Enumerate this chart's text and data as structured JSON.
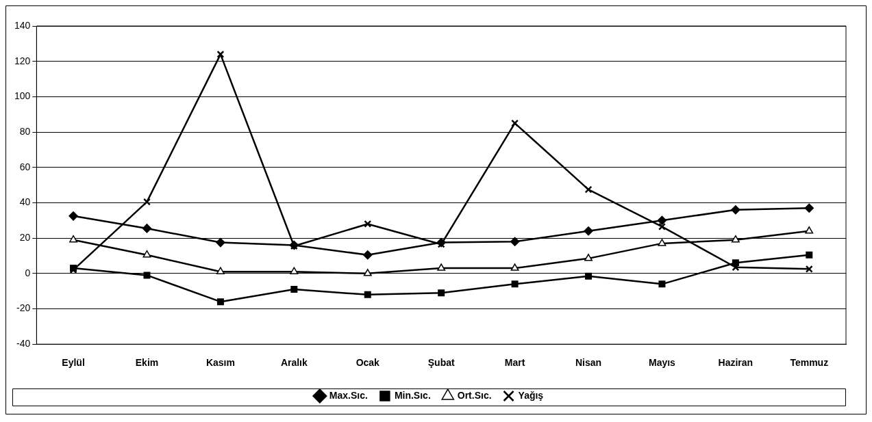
{
  "chart_data": {
    "type": "line",
    "categories": [
      "Eylül",
      "Ekim",
      "Kasım",
      "Aralık",
      "Ocak",
      "Şubat",
      "Mart",
      "Nisan",
      "Mayıs",
      "Haziran",
      "Temmuz"
    ],
    "series": [
      {
        "name": "Max.Sıc.",
        "color": "#000000",
        "marker": "diamond",
        "values": [
          32.5,
          25.5,
          17.5,
          16,
          10.5,
          17.5,
          18,
          24,
          30,
          36,
          37
        ]
      },
      {
        "name": "Min.Sıc.",
        "color": "#000000",
        "marker": "square",
        "values": [
          3,
          -1,
          -16,
          -9,
          -12,
          -11,
          -6,
          -1.5,
          -6,
          6,
          10.5
        ]
      },
      {
        "name": "Ort.Sıc.",
        "color": "#000000",
        "marker": "triangle",
        "values": [
          19,
          10.5,
          1,
          1,
          0,
          3,
          3,
          8.5,
          17,
          19,
          24
        ]
      },
      {
        "name": "Yağış",
        "color": "#000000",
        "marker": "cross",
        "values": [
          2,
          40.5,
          124,
          15.5,
          28,
          16.5,
          85,
          47.5,
          26.5,
          3.5,
          2.5
        ]
      }
    ],
    "ylim": [
      -40,
      140
    ],
    "yticks": [
      -40,
      -20,
      0,
      20,
      40,
      60,
      80,
      100,
      120,
      140
    ],
    "grid": "y",
    "legend": "bottom",
    "line_style": "solid"
  }
}
